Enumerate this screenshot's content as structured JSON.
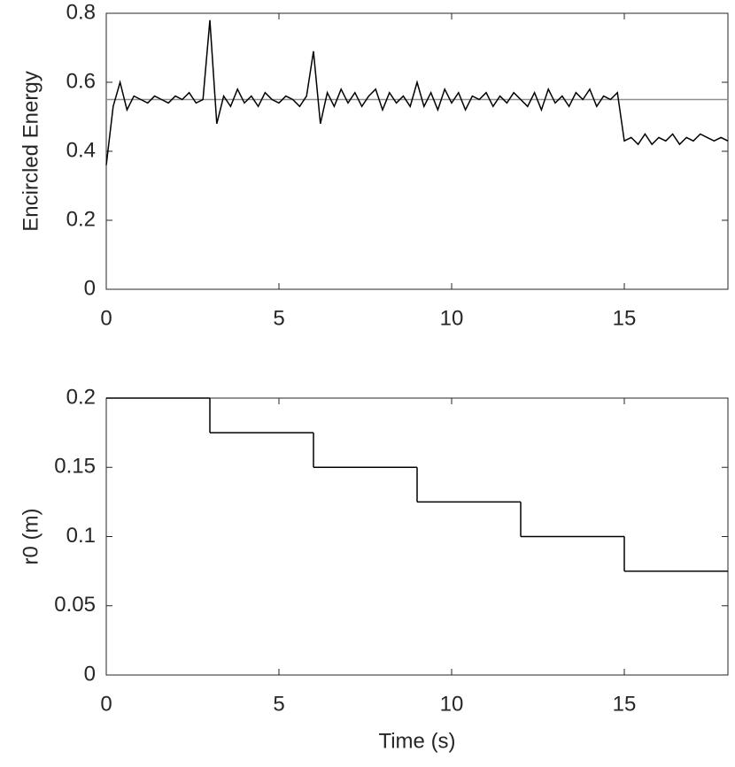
{
  "chart_data": [
    {
      "type": "line",
      "ylabel": "Encircled Energy",
      "xlim": [
        0,
        18
      ],
      "xticks": [
        0,
        5,
        10,
        15
      ],
      "ylim": [
        0,
        0.8
      ],
      "yticks": [
        0,
        0.2,
        0.4,
        0.6,
        0.8
      ],
      "hline": {
        "value": 0.55,
        "color": "#909090"
      },
      "series": [
        {
          "color": "#000000",
          "x": [
            0,
            0.2,
            0.4,
            0.6,
            0.8,
            1,
            1.2,
            1.4,
            1.6,
            1.8,
            2,
            2.2,
            2.4,
            2.6,
            2.8,
            3,
            3.2,
            3.4,
            3.6,
            3.8,
            4,
            4.2,
            4.4,
            4.6,
            4.8,
            5,
            5.2,
            5.4,
            5.6,
            5.8,
            6,
            6.2,
            6.4,
            6.6,
            6.8,
            7,
            7.2,
            7.4,
            7.6,
            7.8,
            8,
            8.2,
            8.4,
            8.6,
            8.8,
            9,
            9.2,
            9.4,
            9.6,
            9.8,
            10,
            10.2,
            10.4,
            10.6,
            10.8,
            11,
            11.2,
            11.4,
            11.6,
            11.8,
            12,
            12.2,
            12.4,
            12.6,
            12.8,
            13,
            13.2,
            13.4,
            13.6,
            13.8,
            14,
            14.2,
            14.4,
            14.6,
            14.8,
            15,
            15.2,
            15.4,
            15.6,
            15.8,
            16,
            16.2,
            16.4,
            16.6,
            16.8,
            17,
            17.2,
            17.4,
            17.6,
            17.8,
            18
          ],
          "values": [
            0.36,
            0.53,
            0.6,
            0.52,
            0.56,
            0.55,
            0.54,
            0.56,
            0.55,
            0.54,
            0.56,
            0.55,
            0.57,
            0.54,
            0.55,
            0.78,
            0.48,
            0.56,
            0.53,
            0.58,
            0.54,
            0.56,
            0.53,
            0.57,
            0.55,
            0.54,
            0.56,
            0.55,
            0.53,
            0.56,
            0.69,
            0.48,
            0.57,
            0.53,
            0.58,
            0.54,
            0.57,
            0.53,
            0.56,
            0.58,
            0.52,
            0.57,
            0.54,
            0.56,
            0.53,
            0.6,
            0.53,
            0.57,
            0.52,
            0.58,
            0.54,
            0.57,
            0.52,
            0.56,
            0.55,
            0.57,
            0.53,
            0.56,
            0.54,
            0.57,
            0.55,
            0.53,
            0.57,
            0.52,
            0.58,
            0.54,
            0.56,
            0.53,
            0.57,
            0.55,
            0.58,
            0.53,
            0.56,
            0.55,
            0.57,
            0.43,
            0.44,
            0.42,
            0.45,
            0.42,
            0.44,
            0.43,
            0.45,
            0.42,
            0.44,
            0.43,
            0.45,
            0.44,
            0.43,
            0.44,
            0.43
          ]
        }
      ]
    },
    {
      "type": "step",
      "ylabel": "r0 (m)",
      "xlabel": "Time (s)",
      "xlim": [
        0,
        18
      ],
      "xticks": [
        0,
        5,
        10,
        15
      ],
      "ylim": [
        0,
        0.2
      ],
      "yticks": [
        0,
        0.05,
        0.1,
        0.15,
        0.2
      ],
      "series": [
        {
          "color": "#000000",
          "x": [
            0,
            3,
            6,
            9,
            12,
            15
          ],
          "values": [
            0.2,
            0.175,
            0.15,
            0.125,
            0.1,
            0.075
          ]
        }
      ]
    }
  ]
}
